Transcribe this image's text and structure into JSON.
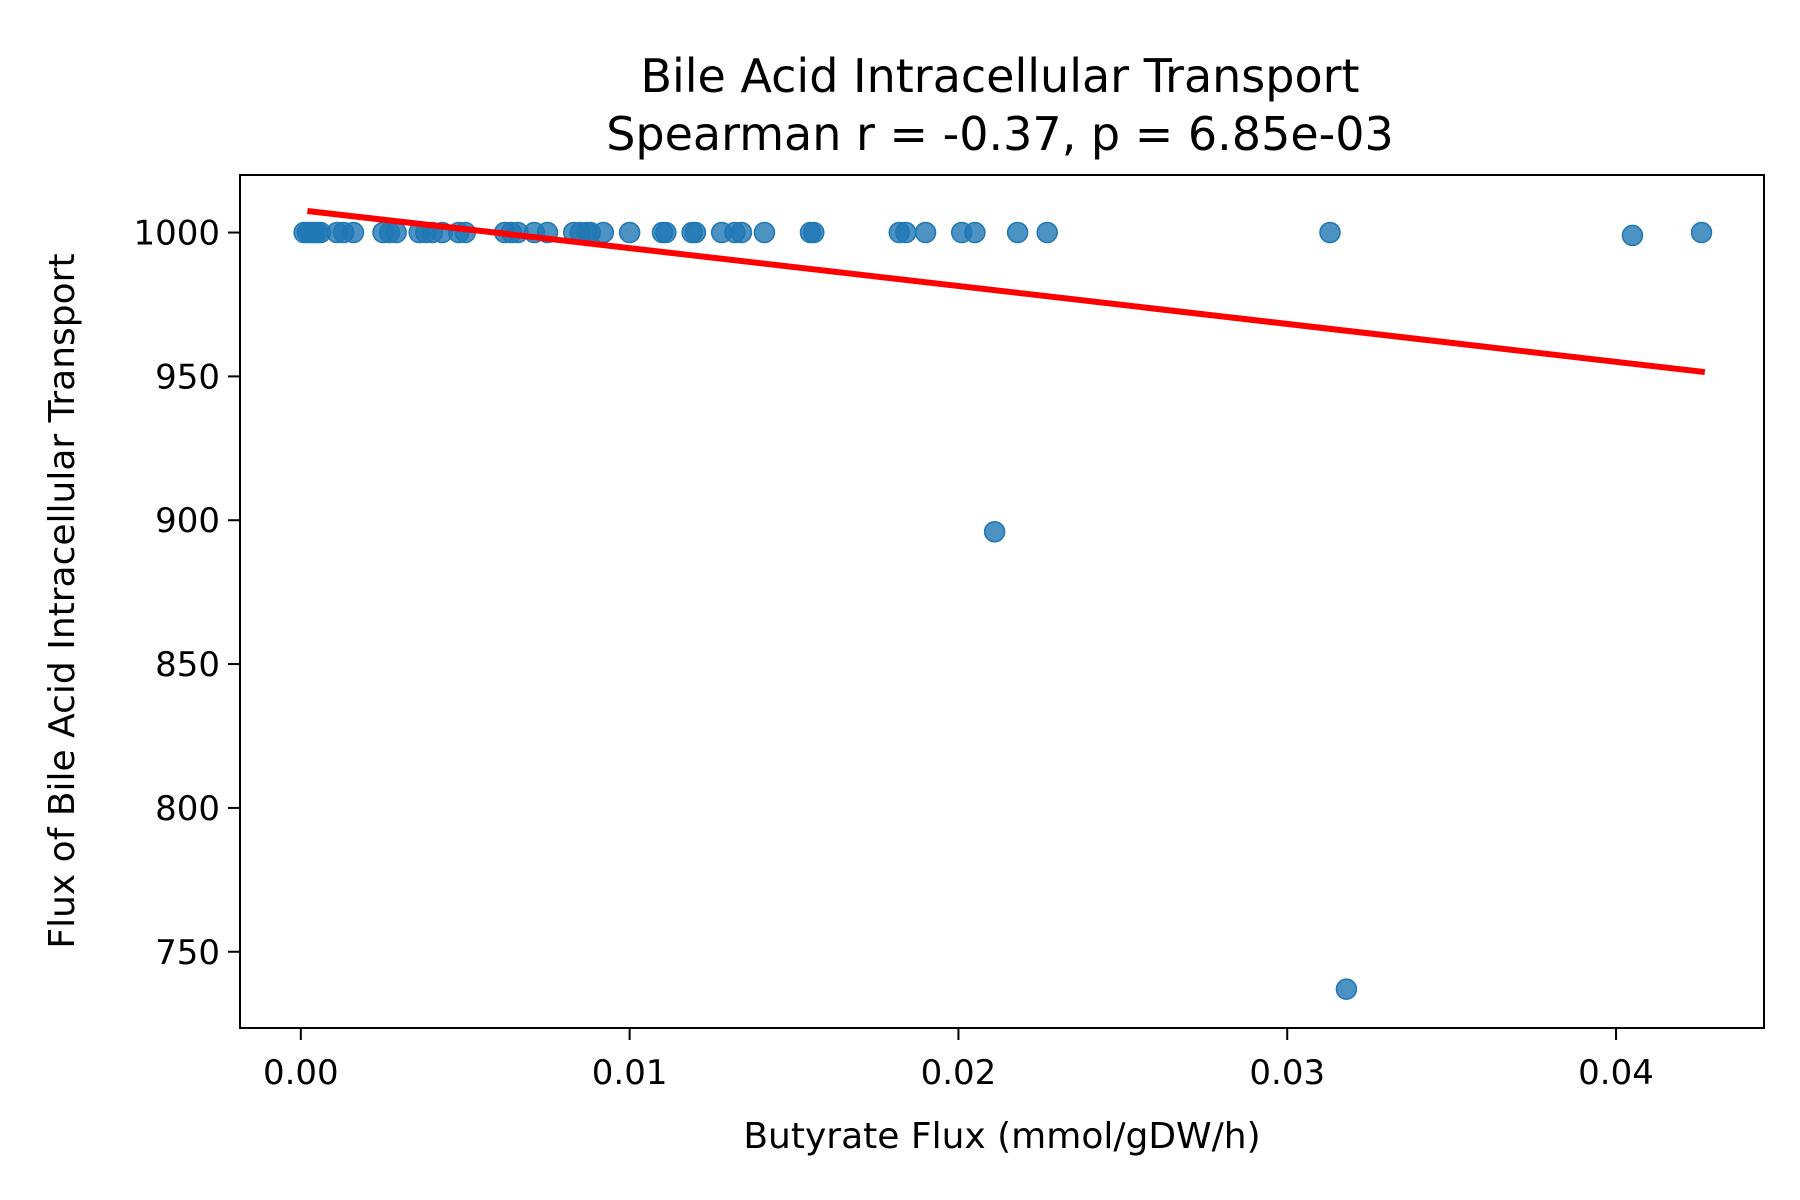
{
  "chart_data": {
    "type": "scatter",
    "title": "Bile Acid Intracellular Transport",
    "subtitle": "Spearman r = -0.37, p = 6.85e-03",
    "xlabel": "Butyrate Flux (mmol/gDW/h)",
    "ylabel": "Flux of Bile Acid Intracellular Transport",
    "xlim": [
      -0.00185,
      0.0445
    ],
    "ylim": [
      723.5,
      1020
    ],
    "x_ticks": [
      "0.00",
      "0.01",
      "0.02",
      "0.03",
      "0.04"
    ],
    "x_tick_values": [
      0.0,
      0.01,
      0.02,
      0.03,
      0.04
    ],
    "y_ticks": [
      "750",
      "800",
      "850",
      "900",
      "950",
      "1000"
    ],
    "y_tick_values": [
      750,
      800,
      850,
      900,
      950,
      1000
    ],
    "grid": false,
    "colors": {
      "points": "#1f77b4",
      "fit_line": "#ff0000"
    },
    "points": [
      {
        "x": 0.0001,
        "y": 1000
      },
      {
        "x": 0.0002,
        "y": 1000
      },
      {
        "x": 0.0003,
        "y": 1000
      },
      {
        "x": 0.0004,
        "y": 1000
      },
      {
        "x": 0.0005,
        "y": 1000
      },
      {
        "x": 0.0006,
        "y": 1000
      },
      {
        "x": 0.0011,
        "y": 1000
      },
      {
        "x": 0.0013,
        "y": 1000
      },
      {
        "x": 0.0016,
        "y": 1000
      },
      {
        "x": 0.0025,
        "y": 1000
      },
      {
        "x": 0.0027,
        "y": 1000
      },
      {
        "x": 0.0029,
        "y": 1000
      },
      {
        "x": 0.0036,
        "y": 1000
      },
      {
        "x": 0.0038,
        "y": 1000
      },
      {
        "x": 0.004,
        "y": 1000
      },
      {
        "x": 0.0043,
        "y": 1000
      },
      {
        "x": 0.0048,
        "y": 1000
      },
      {
        "x": 0.005,
        "y": 1000
      },
      {
        "x": 0.0062,
        "y": 1000
      },
      {
        "x": 0.0064,
        "y": 1000
      },
      {
        "x": 0.0066,
        "y": 1000
      },
      {
        "x": 0.0071,
        "y": 1000
      },
      {
        "x": 0.0075,
        "y": 1000
      },
      {
        "x": 0.0083,
        "y": 1000
      },
      {
        "x": 0.0085,
        "y": 1000
      },
      {
        "x": 0.0087,
        "y": 1000
      },
      {
        "x": 0.0088,
        "y": 1000
      },
      {
        "x": 0.0092,
        "y": 1000
      },
      {
        "x": 0.01,
        "y": 1000
      },
      {
        "x": 0.011,
        "y": 1000
      },
      {
        "x": 0.0111,
        "y": 1000
      },
      {
        "x": 0.0119,
        "y": 1000
      },
      {
        "x": 0.012,
        "y": 1000
      },
      {
        "x": 0.0128,
        "y": 1000
      },
      {
        "x": 0.0132,
        "y": 1000
      },
      {
        "x": 0.0134,
        "y": 1000
      },
      {
        "x": 0.0141,
        "y": 1000
      },
      {
        "x": 0.0155,
        "y": 1000
      },
      {
        "x": 0.0156,
        "y": 1000
      },
      {
        "x": 0.0182,
        "y": 1000
      },
      {
        "x": 0.0184,
        "y": 1000
      },
      {
        "x": 0.019,
        "y": 1000
      },
      {
        "x": 0.0201,
        "y": 1000
      },
      {
        "x": 0.0205,
        "y": 1000
      },
      {
        "x": 0.0211,
        "y": 896
      },
      {
        "x": 0.0218,
        "y": 1000
      },
      {
        "x": 0.0227,
        "y": 1000
      },
      {
        "x": 0.0313,
        "y": 1000
      },
      {
        "x": 0.0318,
        "y": 737
      },
      {
        "x": 0.0405,
        "y": 999
      },
      {
        "x": 0.0426,
        "y": 1000
      }
    ],
    "fit_line": {
      "x": [
        0.0002,
        0.0427
      ],
      "y": [
        1007.5,
        951.5
      ]
    }
  }
}
